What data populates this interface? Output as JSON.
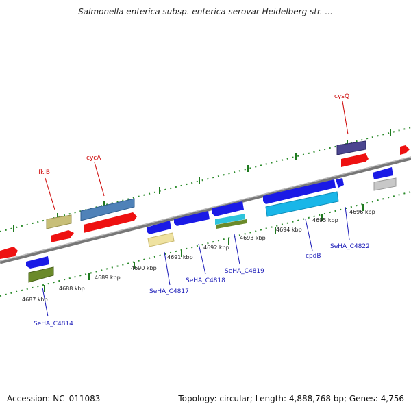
{
  "header": {
    "title": "Salmonella enterica subsp. enterica serovar Heidelberg str. ..."
  },
  "footer": {
    "accession": "Accession: NC_011083",
    "summary": "Topology: circular; Length: 4,888,768 bp; Genes: 4,756"
  },
  "map": {
    "ticks": [
      "4687 kbp",
      "4688 kbp",
      "4689 kbp",
      "4690 kbp",
      "4691 kbp",
      "4692 kbp",
      "4693 kbp",
      "4694 kbp",
      "4695 kbp",
      "4696 kbp"
    ],
    "top_labels": [
      "fklB",
      "cycA",
      "cysQ"
    ],
    "bottom_labels": [
      "SeHA_C4814",
      "SeHA_C4817",
      "SeHA_C4818",
      "SeHA_C4819",
      "cpdB",
      "SeHA_C4822"
    ]
  },
  "colors": {
    "forward_cds": "#ee1111",
    "reverse_cds": "#1a1ae6",
    "top_label": "#cc0000",
    "bottom_label": "#1a1ab8",
    "backbone": "#888888",
    "tick_mark": "#2a8a2a"
  }
}
